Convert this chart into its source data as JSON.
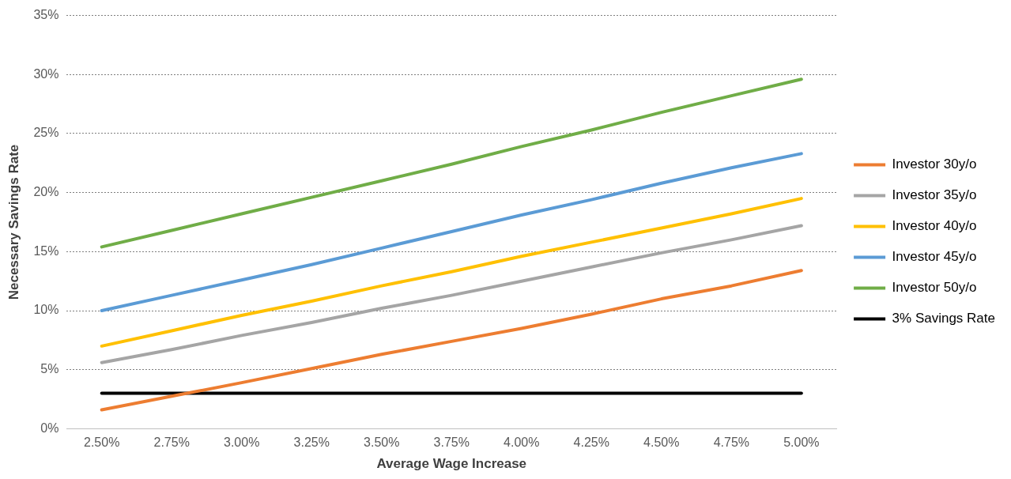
{
  "chart_data": {
    "type": "line",
    "xlabel": "Average Wage Increase",
    "ylabel": "Necessary Savings Rate",
    "categories": [
      "2.50%",
      "2.75%",
      "3.00%",
      "3.25%",
      "3.50%",
      "3.75%",
      "4.00%",
      "4.25%",
      "4.50%",
      "4.75%",
      "5.00%"
    ],
    "series": [
      {
        "name": "Investor 30y/o",
        "color": "#ed7d31",
        "values": [
          1.6,
          2.75,
          3.9,
          5.1,
          6.3,
          7.4,
          8.5,
          9.7,
          11.0,
          12.1,
          13.4
        ]
      },
      {
        "name": "Investor 35y/o",
        "color": "#a5a5a5",
        "values": [
          5.6,
          6.7,
          7.9,
          9.0,
          10.2,
          11.3,
          12.5,
          13.7,
          14.9,
          16.0,
          17.2
        ]
      },
      {
        "name": "Investor 40y/o",
        "color": "#ffc000",
        "values": [
          7.0,
          8.3,
          9.6,
          10.8,
          12.1,
          13.3,
          14.6,
          15.8,
          17.0,
          18.2,
          19.5
        ]
      },
      {
        "name": "Investor 45y/o",
        "color": "#5b9bd5",
        "values": [
          10.0,
          11.3,
          12.6,
          13.9,
          15.3,
          16.7,
          18.1,
          19.4,
          20.8,
          22.1,
          23.3
        ]
      },
      {
        "name": "Investor 50y/o",
        "color": "#70ad47",
        "values": [
          15.4,
          16.8,
          18.2,
          19.6,
          21.0,
          22.4,
          23.9,
          25.3,
          26.8,
          28.2,
          29.6
        ]
      },
      {
        "name": "3% Savings Rate",
        "color": "#000000",
        "values": [
          3,
          3,
          3,
          3,
          3,
          3,
          3,
          3,
          3,
          3,
          3
        ]
      }
    ],
    "ylim": [
      0,
      35
    ],
    "yticks": [
      {
        "value": 0,
        "label": "0%"
      },
      {
        "value": 5,
        "label": "5%"
      },
      {
        "value": 10,
        "label": "10%"
      },
      {
        "value": 15,
        "label": "15%"
      },
      {
        "value": 20,
        "label": "20%"
      },
      {
        "value": 25,
        "label": "25%"
      },
      {
        "value": 30,
        "label": "30%"
      },
      {
        "value": 35,
        "label": "35%"
      }
    ],
    "grid": "y",
    "legend": "right",
    "marker": "none",
    "line_style": "solid"
  }
}
